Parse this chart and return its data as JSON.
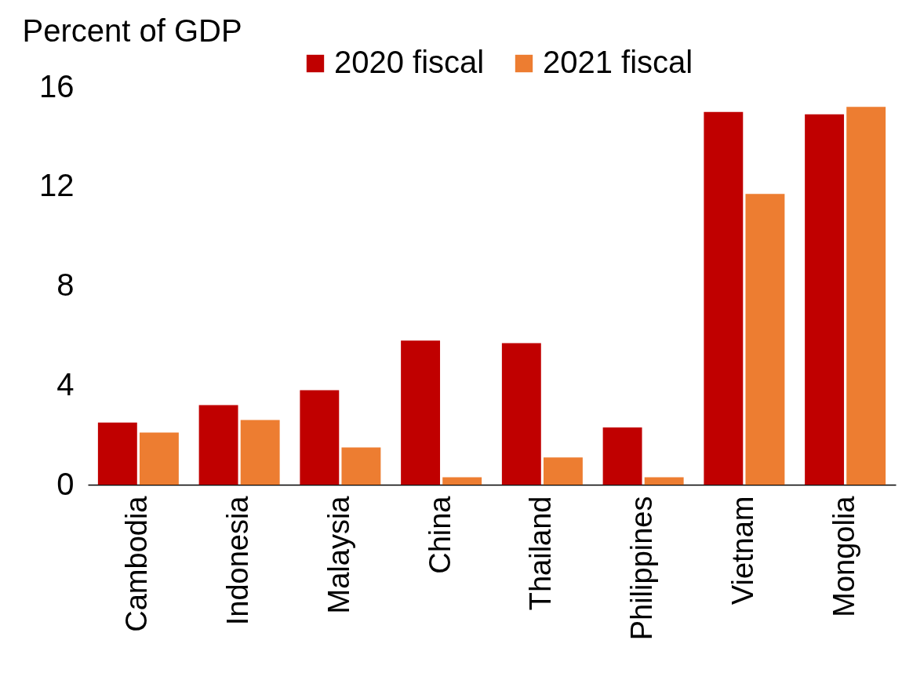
{
  "chart_data": {
    "type": "bar",
    "ylabel": "Percent of GDP",
    "categories": [
      "Cambodia",
      "Indonesia",
      "Malaysia",
      "China",
      "Thailand",
      "Philippines",
      "Vietnam",
      "Mongolia"
    ],
    "series": [
      {
        "name": "2020 fiscal",
        "color": "#c00000",
        "values": [
          2.5,
          3.2,
          3.8,
          5.8,
          5.7,
          2.3,
          15.0,
          14.9
        ]
      },
      {
        "name": "2021 fiscal",
        "color": "#ed7d31",
        "values": [
          2.1,
          2.6,
          1.5,
          0.3,
          1.1,
          0.3,
          11.7,
          15.2
        ]
      }
    ],
    "ylim": [
      0,
      16
    ],
    "yticks": [
      0,
      4,
      8,
      12,
      16
    ],
    "legend": "top"
  }
}
